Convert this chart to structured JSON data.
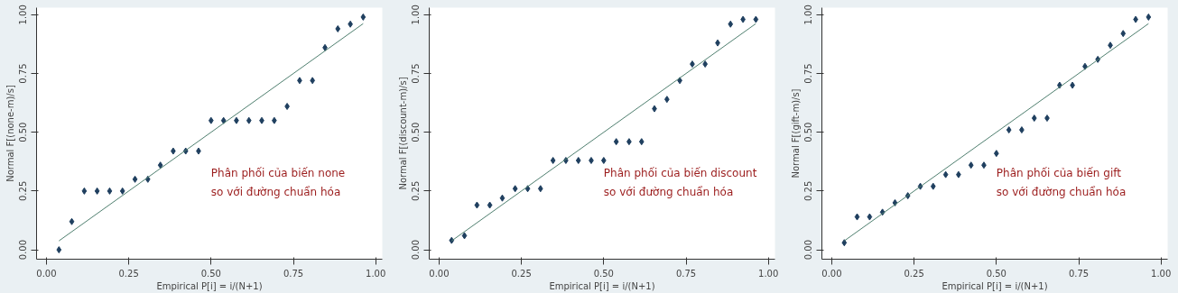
{
  "chart_data": [
    {
      "type": "scatter",
      "xlabel": "Empirical P[i] = i/(N+1)",
      "ylabel": "Normal F[(none-m)/s]",
      "annotations": [
        "Phân phối của biến none\nso với đường chuẩn hóa"
      ],
      "grid": false,
      "xlim": [
        -0.03,
        1.02
      ],
      "ylim": [
        -0.04,
        1.03
      ],
      "xticks": [
        {
          "value": 0,
          "label": "0.00"
        },
        {
          "value": 0.25,
          "label": "0.25"
        },
        {
          "value": 0.5,
          "label": "0.50"
        },
        {
          "value": 0.75,
          "label": "0.75"
        },
        {
          "value": 1,
          "label": "1.00"
        }
      ],
      "yticks": [
        {
          "value": 0,
          "label": "0.00"
        },
        {
          "value": 0.25,
          "label": "0.25"
        },
        {
          "value": 0.5,
          "label": "0.50"
        },
        {
          "value": 0.75,
          "label": "0.75"
        },
        {
          "value": 1,
          "label": "1.00"
        }
      ],
      "series": [
        {
          "marker": "diamond",
          "color": "#1f3f5f",
          "x": [
            0.038,
            0.077,
            0.115,
            0.154,
            0.192,
            0.231,
            0.269,
            0.308,
            0.346,
            0.385,
            0.423,
            0.462,
            0.5,
            0.538,
            0.577,
            0.615,
            0.654,
            0.692,
            0.731,
            0.769,
            0.808,
            0.846,
            0.885,
            0.923,
            0.962
          ],
          "values": [
            0.0,
            0.12,
            0.25,
            0.25,
            0.25,
            0.25,
            0.3,
            0.3,
            0.36,
            0.42,
            0.42,
            0.42,
            0.55,
            0.55,
            0.55,
            0.55,
            0.55,
            0.55,
            0.61,
            0.72,
            0.72,
            0.86,
            0.94,
            0.96,
            0.99
          ]
        },
        {
          "type": "line",
          "color": "#4f7f6f",
          "x": [
            0.038,
            0.962
          ],
          "values": [
            0.038,
            0.962
          ]
        }
      ]
    },
    {
      "type": "scatter",
      "xlabel": "Empirical P[i] = i/(N+1)",
      "ylabel": "Normal F[(discount-m)/s]",
      "annotations": [
        "Phân phối của biến discount\nso với đường chuẩn hóa"
      ],
      "grid": false,
      "xlim": [
        -0.03,
        1.02
      ],
      "ylim": [
        -0.04,
        1.03
      ],
      "xticks": [
        {
          "value": 0,
          "label": "0.00"
        },
        {
          "value": 0.25,
          "label": "0.25"
        },
        {
          "value": 0.5,
          "label": "0.50"
        },
        {
          "value": 0.75,
          "label": "0.75"
        },
        {
          "value": 1,
          "label": "1.00"
        }
      ],
      "yticks": [
        {
          "value": 0,
          "label": "0.00"
        },
        {
          "value": 0.25,
          "label": "0.25"
        },
        {
          "value": 0.5,
          "label": "0.50"
        },
        {
          "value": 0.75,
          "label": "0.75"
        },
        {
          "value": 1,
          "label": "1.00"
        }
      ],
      "series": [
        {
          "marker": "diamond",
          "color": "#1f3f5f",
          "x": [
            0.038,
            0.077,
            0.115,
            0.154,
            0.192,
            0.231,
            0.269,
            0.308,
            0.346,
            0.385,
            0.423,
            0.462,
            0.5,
            0.538,
            0.577,
            0.615,
            0.654,
            0.692,
            0.731,
            0.769,
            0.808,
            0.846,
            0.885,
            0.923,
            0.962
          ],
          "values": [
            0.04,
            0.06,
            0.19,
            0.19,
            0.22,
            0.26,
            0.26,
            0.26,
            0.38,
            0.38,
            0.38,
            0.38,
            0.38,
            0.46,
            0.46,
            0.46,
            0.6,
            0.64,
            0.72,
            0.79,
            0.79,
            0.88,
            0.96,
            0.98,
            0.98
          ]
        },
        {
          "type": "line",
          "color": "#4f7f6f",
          "x": [
            0.038,
            0.962
          ],
          "values": [
            0.038,
            0.962
          ]
        }
      ]
    },
    {
      "type": "scatter",
      "xlabel": "Empirical P[i] = i/(N+1)",
      "ylabel": "Normal F[(gift-m)/s]",
      "annotations": [
        "Phân phối của biến gift\nso với đường chuẩn hóa"
      ],
      "grid": false,
      "xlim": [
        -0.03,
        1.02
      ],
      "ylim": [
        -0.04,
        1.03
      ],
      "xticks": [
        {
          "value": 0,
          "label": "0.00"
        },
        {
          "value": 0.25,
          "label": "0.25"
        },
        {
          "value": 0.5,
          "label": "0.50"
        },
        {
          "value": 0.75,
          "label": "0.75"
        },
        {
          "value": 1,
          "label": "1.00"
        }
      ],
      "yticks": [
        {
          "value": 0,
          "label": "0.00"
        },
        {
          "value": 0.25,
          "label": "0.25"
        },
        {
          "value": 0.5,
          "label": "0.50"
        },
        {
          "value": 0.75,
          "label": "0.75"
        },
        {
          "value": 1,
          "label": "1.00"
        }
      ],
      "series": [
        {
          "marker": "diamond",
          "color": "#1f3f5f",
          "x": [
            0.038,
            0.077,
            0.115,
            0.154,
            0.192,
            0.231,
            0.269,
            0.308,
            0.346,
            0.385,
            0.423,
            0.462,
            0.5,
            0.538,
            0.577,
            0.615,
            0.654,
            0.692,
            0.731,
            0.769,
            0.808,
            0.846,
            0.885,
            0.923,
            0.962
          ],
          "values": [
            0.03,
            0.14,
            0.14,
            0.16,
            0.2,
            0.23,
            0.27,
            0.27,
            0.32,
            0.32,
            0.36,
            0.36,
            0.41,
            0.51,
            0.51,
            0.56,
            0.56,
            0.7,
            0.7,
            0.78,
            0.81,
            0.87,
            0.92,
            0.98,
            0.99
          ]
        },
        {
          "type": "line",
          "color": "#4f7f6f",
          "x": [
            0.038,
            0.962
          ],
          "values": [
            0.038,
            0.962
          ]
        }
      ]
    }
  ]
}
